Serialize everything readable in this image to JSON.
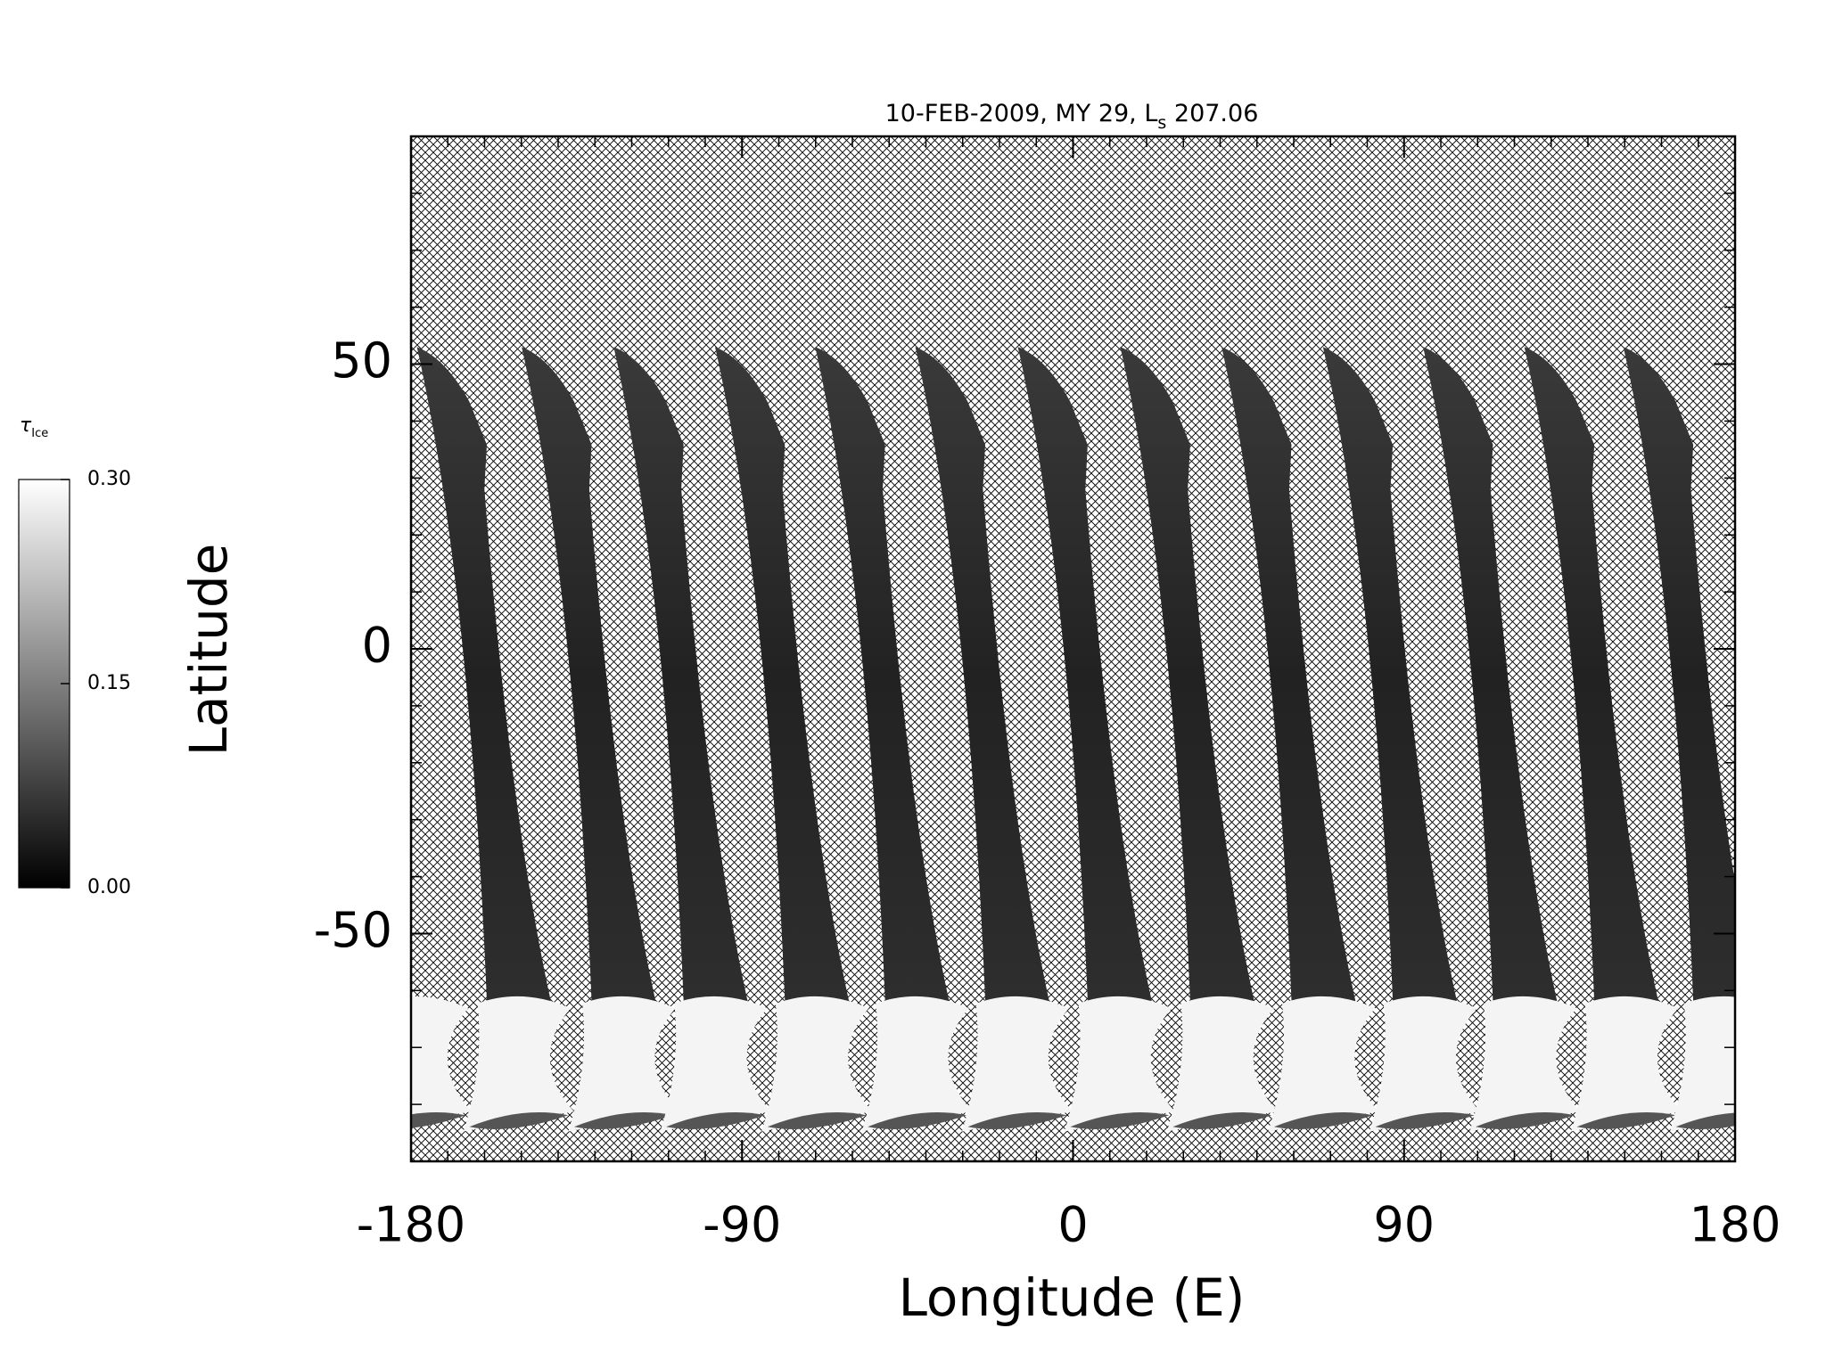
{
  "chart_data": {
    "type": "swath-map",
    "title": [
      "10-FEB-2009, MY 29,  L",
      "s",
      " 207.06"
    ],
    "xlabel": "Longitude (E)",
    "ylabel": "Latitude",
    "xlim": [
      -180,
      180
    ],
    "xticks": [
      -180,
      -90,
      0,
      90,
      180
    ],
    "ylim": [
      -90,
      90
    ],
    "yticks": [
      -50,
      0,
      50
    ],
    "colorbar": {
      "label": [
        "τ",
        "Ice"
      ],
      "lim": [
        0,
        0.3
      ],
      "ticks": [
        {
          "value": 0,
          "label": "0.00"
        },
        {
          "value": 0.15,
          "label": "0.15"
        },
        {
          "value": 0.3,
          "label": "0.30"
        }
      ],
      "colors": [
        "#000000",
        "#ffffff"
      ]
    }
  }
}
